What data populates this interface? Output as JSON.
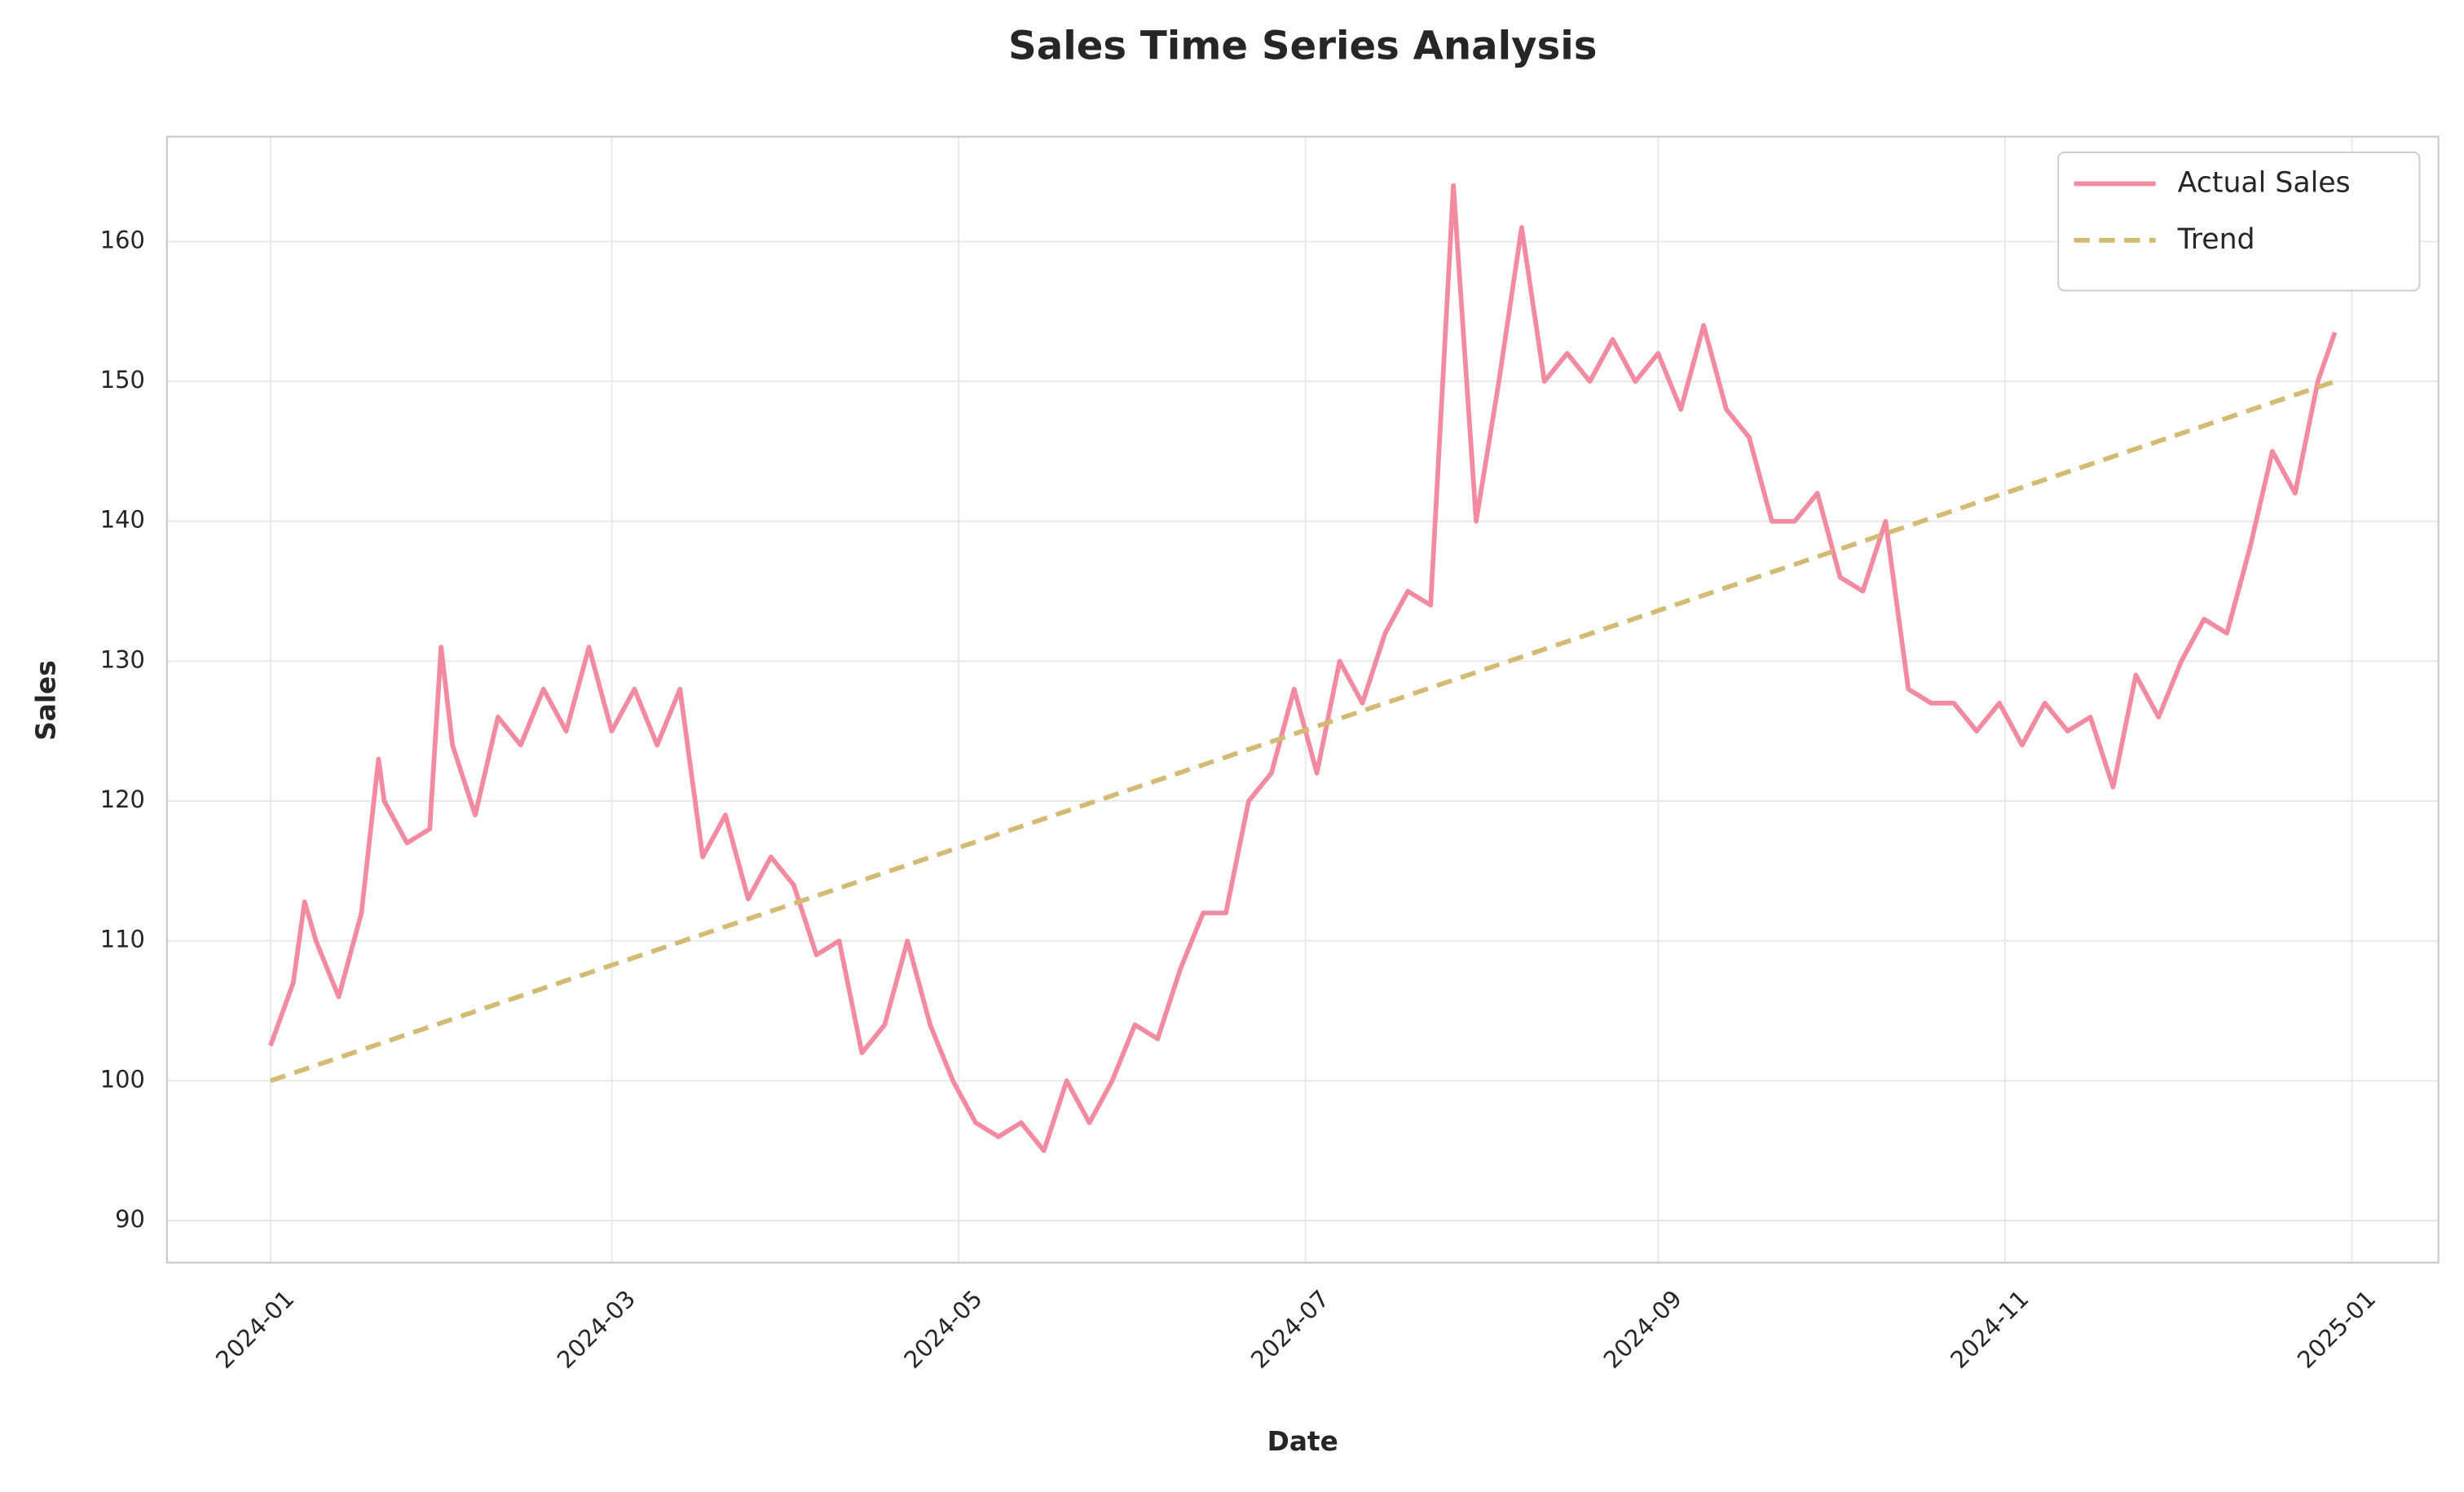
{
  "chart_data": {
    "type": "line",
    "title": "Sales Time Series Analysis",
    "x_label": "Date",
    "y_label": "Sales",
    "series": [
      {
        "name": "Actual Sales",
        "color": "#f28aa0",
        "dashed": false,
        "x": [
          0,
          4,
          6,
          8,
          12,
          16,
          19,
          20,
          24,
          28,
          30,
          32,
          36,
          40,
          44,
          48,
          52,
          56,
          60,
          64,
          68,
          72,
          76,
          80,
          84,
          88,
          92,
          96,
          100,
          104,
          108,
          112,
          116,
          120,
          124,
          128,
          132,
          136,
          140,
          144,
          148,
          152,
          156,
          160,
          164,
          168,
          172,
          176,
          180,
          184,
          188,
          192,
          196,
          200,
          204,
          208,
          212,
          216,
          220,
          224,
          228,
          232,
          236,
          240,
          244,
          248,
          252,
          256,
          260,
          264,
          268,
          272,
          276,
          280,
          284,
          288,
          292,
          296,
          300,
          304,
          308,
          312,
          316,
          320,
          324,
          328,
          332,
          336,
          340,
          344,
          348,
          352,
          356,
          360,
          363
        ],
        "values": [
          102.5,
          107,
          112.8,
          110,
          106,
          112,
          123,
          120,
          117,
          118,
          131,
          124,
          119,
          126,
          124,
          128,
          125,
          131,
          125,
          128,
          124,
          128,
          116,
          119,
          113,
          116,
          114,
          109,
          110,
          102,
          104,
          110,
          104,
          100,
          97,
          96,
          97,
          95,
          100,
          97,
          100,
          104,
          103,
          108,
          112,
          112,
          120,
          122,
          128,
          122,
          130,
          127,
          132,
          135,
          134,
          164,
          140,
          150,
          161,
          150,
          152,
          150,
          153,
          150,
          152,
          148,
          154,
          148,
          146,
          140,
          140,
          142,
          136,
          135,
          140,
          128,
          127,
          127,
          125,
          127,
          124,
          127,
          125,
          126,
          121,
          129,
          126,
          130,
          133,
          132,
          138,
          145,
          142,
          150,
          153.5
        ]
      },
      {
        "name": "Trend",
        "color": "#d4bb74",
        "dashed": true,
        "x": [
          0,
          363
        ],
        "values": [
          100,
          150
        ]
      }
    ],
    "xlim": [
      -18.2,
      381.2
    ],
    "xticks": [
      {
        "value": 0,
        "label": "2024-01"
      },
      {
        "value": 60,
        "label": "2024-03"
      },
      {
        "value": 121,
        "label": "2024-05"
      },
      {
        "value": 182,
        "label": "2024-07"
      },
      {
        "value": 244,
        "label": "2024-09"
      },
      {
        "value": 305,
        "label": "2024-11"
      },
      {
        "value": 366,
        "label": "2025-01"
      }
    ],
    "ylim": [
      87,
      167.5
    ],
    "yticks": [
      90,
      100,
      110,
      120,
      130,
      140,
      150,
      160
    ],
    "grid": true,
    "legend": "upper right"
  }
}
